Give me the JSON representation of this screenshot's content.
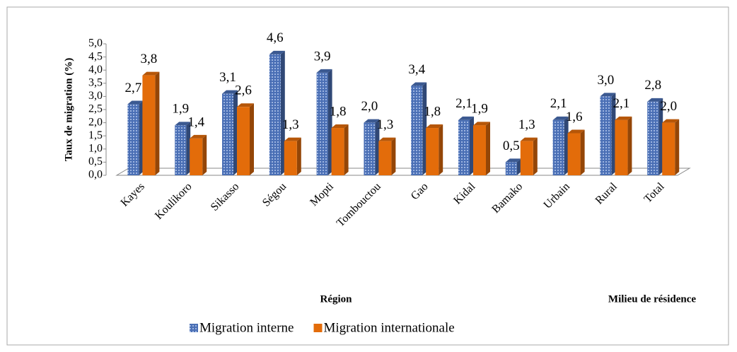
{
  "chart_data": {
    "type": "bar",
    "y_label": "Taux de migration (%)",
    "annotations": [
      "Région",
      "Milieu de résidence"
    ],
    "categories": [
      "Kayes",
      "Koulikoro",
      "Sikasso",
      "Ségou",
      "Mopti",
      "Tombouctou",
      "Gao",
      "Kidal",
      "Bamako",
      "Urbain",
      "Rural",
      "Total"
    ],
    "series": [
      {
        "name": "Migration interne",
        "color": "#4a6fb5",
        "values": [
          2.7,
          1.9,
          3.1,
          4.6,
          3.9,
          2.0,
          3.4,
          2.1,
          0.5,
          2.1,
          3.0,
          2.8
        ],
        "value_labels": [
          "2,7",
          "1,9",
          "3,1",
          "4,6",
          "3,9",
          "2,0",
          "3,4",
          "2,1",
          "0,5",
          "2,1",
          "3,0",
          "2,8"
        ]
      },
      {
        "name": "Migration internationale",
        "color": "#e36c0a",
        "values": [
          3.8,
          1.4,
          2.6,
          1.3,
          1.8,
          1.3,
          1.8,
          1.9,
          1.3,
          1.6,
          2.1,
          2.0
        ],
        "value_labels": [
          "3,8",
          "1,4",
          "2,6",
          "1,3",
          "1,8",
          "1,3",
          "1,8",
          "1,9",
          "1,3",
          "1,6",
          "2,1",
          "2,0"
        ]
      }
    ],
    "ylim": [
      0,
      5
    ],
    "yticks": [
      {
        "value": 0,
        "label": "0,0"
      },
      {
        "value": 0.5,
        "label": "0,5"
      },
      {
        "value": 1,
        "label": "1,0"
      },
      {
        "value": 1.5,
        "label": "1,5"
      },
      {
        "value": 2,
        "label": "2,0"
      },
      {
        "value": 2.5,
        "label": "2,5"
      },
      {
        "value": 3,
        "label": "3,0"
      },
      {
        "value": 3.5,
        "label": "3,5"
      },
      {
        "value": 4,
        "label": "4,0"
      },
      {
        "value": 4.5,
        "label": "4,5"
      },
      {
        "value": 5,
        "label": "5,0"
      }
    ]
  }
}
